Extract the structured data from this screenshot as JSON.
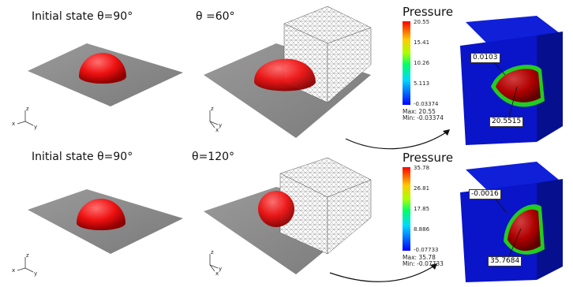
{
  "top": {
    "initial_label": "Initial state θ=90°",
    "final_label": "θ =60°",
    "colorbar": {
      "title": "Pressure",
      "ticks": [
        "20.55",
        "15.41",
        "10.26",
        "5.113",
        "-0.03374"
      ],
      "max": "Max: 20.55",
      "min": "Min: -0.03374"
    },
    "probes": [
      "0.0103",
      "20.5515"
    ]
  },
  "bottom": {
    "initial_label": "Initial state θ=90°",
    "final_label": "θ=120°",
    "colorbar": {
      "title": "Pressure",
      "ticks": [
        "35.78",
        "26.81",
        "17.85",
        "8.886",
        "-0.07733"
      ],
      "max": "Max: 35.78",
      "min": "Min: -0.07733"
    },
    "probes": [
      "-0.0016",
      "35.7684"
    ]
  },
  "axes": {
    "x": "x",
    "y": "y",
    "z": "z"
  },
  "colors": {
    "droplet": "#ee1111",
    "plate": "#8c8c8c",
    "domain": "#0a14c8"
  }
}
